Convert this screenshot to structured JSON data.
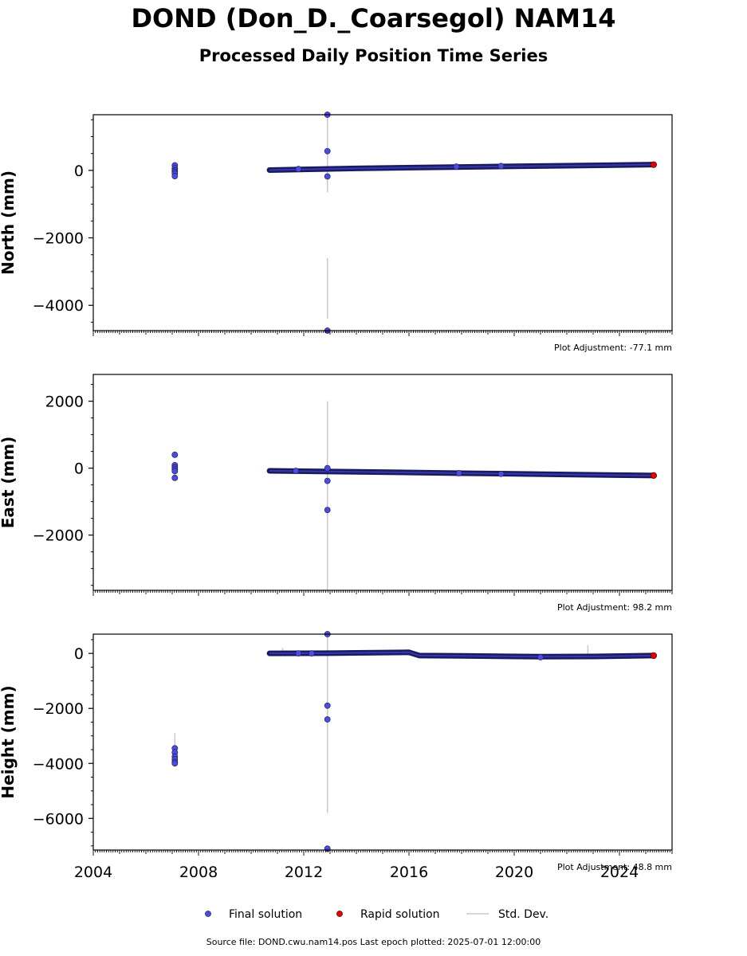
{
  "title": "DOND (Don_D._Coarsegol) NAM14",
  "subtitle": "Processed Daily Position Time Series",
  "source_line": "Source file: DOND.cwu.nam14.pos  Last epoch plotted: 2025-07-01 12:00:00",
  "legend": {
    "final": "Final solution",
    "rapid": "Rapid solution",
    "std": "Std. Dev."
  },
  "colors": {
    "final": "#4b4be6",
    "rapid": "#e60000",
    "std": "#c8c8c8",
    "band": "#1a1a5e"
  },
  "chart_data": [
    {
      "type": "scatter",
      "ylabel": "North (mm)",
      "adjustment": "Plot Adjustment: -77.1 mm",
      "xlim": [
        2004,
        2026
      ],
      "ylim": [
        -4750,
        1650
      ],
      "yticks": [
        0,
        -2000,
        -4000
      ],
      "ytick_labels": [
        "0",
        "−2000",
        "−4000"
      ],
      "trend": [
        [
          2010.7,
          10
        ],
        [
          2014,
          60
        ],
        [
          2018,
          100
        ],
        [
          2022,
          140
        ],
        [
          2025.3,
          170
        ]
      ],
      "final_points": [
        [
          2007.1,
          150
        ],
        [
          2007.1,
          60
        ],
        [
          2007.1,
          0
        ],
        [
          2007.1,
          -40
        ],
        [
          2007.1,
          -90
        ],
        [
          2007.1,
          -170
        ],
        [
          2011.8,
          40
        ],
        [
          2017.8,
          110
        ],
        [
          2019.5,
          130
        ],
        [
          2012.9,
          1650
        ],
        [
          2012.9,
          570
        ],
        [
          2012.9,
          -180
        ],
        [
          2012.9,
          -4750
        ]
      ],
      "rapid_points": [
        [
          2025.3,
          170
        ]
      ],
      "std_bars": [
        [
          2012.9,
          -4400,
          -2600
        ],
        [
          2012.9,
          -650,
          1650
        ]
      ]
    },
    {
      "type": "scatter",
      "ylabel": "East (mm)",
      "adjustment": "Plot Adjustment: 98.2 mm",
      "xlim": [
        2004,
        2026
      ],
      "ylim": [
        -3650,
        2800
      ],
      "yticks": [
        2000,
        0,
        -2000
      ],
      "ytick_labels": [
        "2000",
        "0",
        "−2000"
      ],
      "trend": [
        [
          2010.7,
          -80
        ],
        [
          2014,
          -110
        ],
        [
          2018,
          -150
        ],
        [
          2022,
          -190
        ],
        [
          2025.3,
          -220
        ]
      ],
      "final_points": [
        [
          2007.1,
          400
        ],
        [
          2007.1,
          90
        ],
        [
          2007.1,
          20
        ],
        [
          2007.1,
          -40
        ],
        [
          2007.1,
          -90
        ],
        [
          2007.1,
          -290
        ],
        [
          2011.7,
          -80
        ],
        [
          2017.9,
          -150
        ],
        [
          2019.5,
          -170
        ],
        [
          2012.9,
          0
        ],
        [
          2012.9,
          -380
        ],
        [
          2012.9,
          -1250
        ]
      ],
      "rapid_points": [
        [
          2025.3,
          -220
        ]
      ],
      "std_bars": [
        [
          2012.9,
          -3650,
          2000
        ]
      ]
    },
    {
      "type": "scatter",
      "ylabel": "Height (mm)",
      "adjustment": "Plot Adjustment: 48.8 mm",
      "xlim": [
        2004,
        2026
      ],
      "ylim": [
        -7150,
        700
      ],
      "yticks": [
        0,
        -2000,
        -4000,
        -6000
      ],
      "ytick_labels": [
        "0",
        "−2000",
        "−4000",
        "−6000"
      ],
      "trend": [
        [
          2010.7,
          0
        ],
        [
          2013,
          10
        ],
        [
          2014,
          20
        ],
        [
          2016,
          40
        ],
        [
          2016.4,
          -80
        ],
        [
          2018,
          -90
        ],
        [
          2021,
          -120
        ],
        [
          2023,
          -110
        ],
        [
          2025.3,
          -80
        ]
      ],
      "final_points": [
        [
          2007.1,
          -3450
        ],
        [
          2007.1,
          -3600
        ],
        [
          2007.1,
          -3750
        ],
        [
          2007.1,
          -3850
        ],
        [
          2007.1,
          -3950
        ],
        [
          2007.1,
          -4000
        ],
        [
          2011.8,
          0
        ],
        [
          2012.3,
          0
        ],
        [
          2021,
          -140
        ],
        [
          2012.9,
          700
        ],
        [
          2012.9,
          -1900
        ],
        [
          2012.9,
          -2400
        ],
        [
          2012.9,
          -7100
        ]
      ],
      "rapid_points": [
        [
          2025.3,
          -80
        ]
      ],
      "std_bars": [
        [
          2007.1,
          -4000,
          -2900
        ],
        [
          2012.9,
          -5800,
          700
        ],
        [
          2011.2,
          -80,
          200
        ],
        [
          2022.8,
          -150,
          300
        ]
      ]
    }
  ],
  "x_axis": {
    "ticks": [
      2004,
      2008,
      2012,
      2016,
      2020,
      2024
    ],
    "tick_labels": [
      "2004",
      "2008",
      "2012",
      "2016",
      "2020",
      "2024"
    ]
  }
}
